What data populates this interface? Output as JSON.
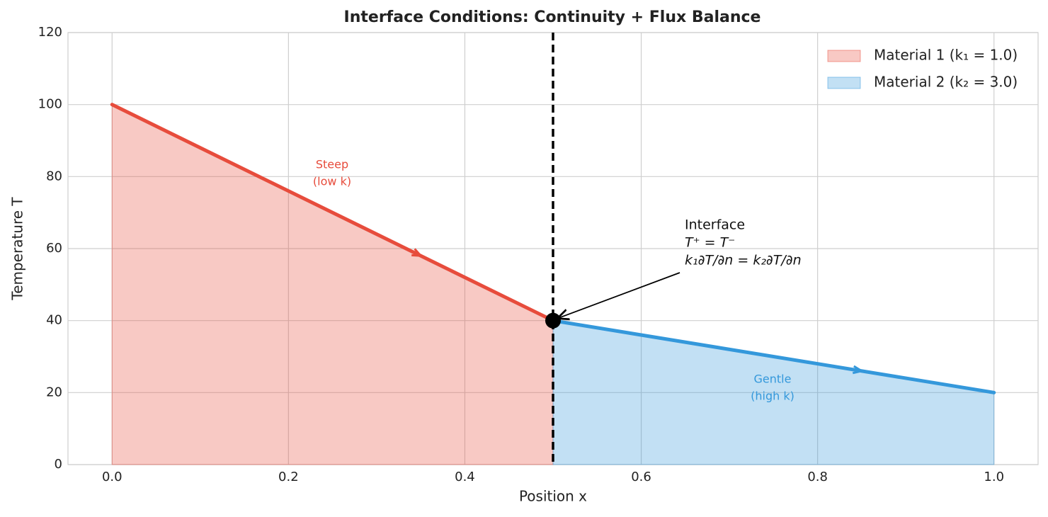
{
  "chart_data": {
    "type": "area_line",
    "title": "Interface Conditions: Continuity + Flux Balance",
    "x_label": "Position x",
    "y_label": "Temperature T",
    "xlim": [
      -0.05,
      1.05
    ],
    "ylim": [
      0,
      120
    ],
    "xticks": [
      {
        "value": 0,
        "label": "0.0"
      },
      0.2,
      0.4,
      0.6,
      0.8,
      {
        "value": 1,
        "label": "1.0"
      }
    ],
    "yticks": [
      0,
      20,
      40,
      60,
      80,
      100,
      120
    ],
    "grid": true,
    "legend": "upper right",
    "interface_x": 0.5,
    "series": [
      {
        "name": "Material 1 (k₁ = 1.0)",
        "color": "#e74c3c",
        "x": [
          0,
          0.5
        ],
        "values": [
          100,
          40
        ]
      },
      {
        "name": "Material 2 (k₂ = 3.0)",
        "color": "#3498db",
        "x": [
          0.5,
          1
        ],
        "values": [
          40,
          20
        ]
      }
    ],
    "annotations": [
      {
        "lines": [
          "Steep",
          "(low k)"
        ],
        "color": "#e74c3c"
      },
      {
        "lines": [
          "Gentle",
          "(high k)"
        ],
        "color": "#3498db"
      },
      {
        "lines": [
          "Interface",
          "T⁺ = T⁻",
          "k₁∂T/∂n = k₂∂T/∂n"
        ],
        "color": "#111111"
      }
    ]
  }
}
